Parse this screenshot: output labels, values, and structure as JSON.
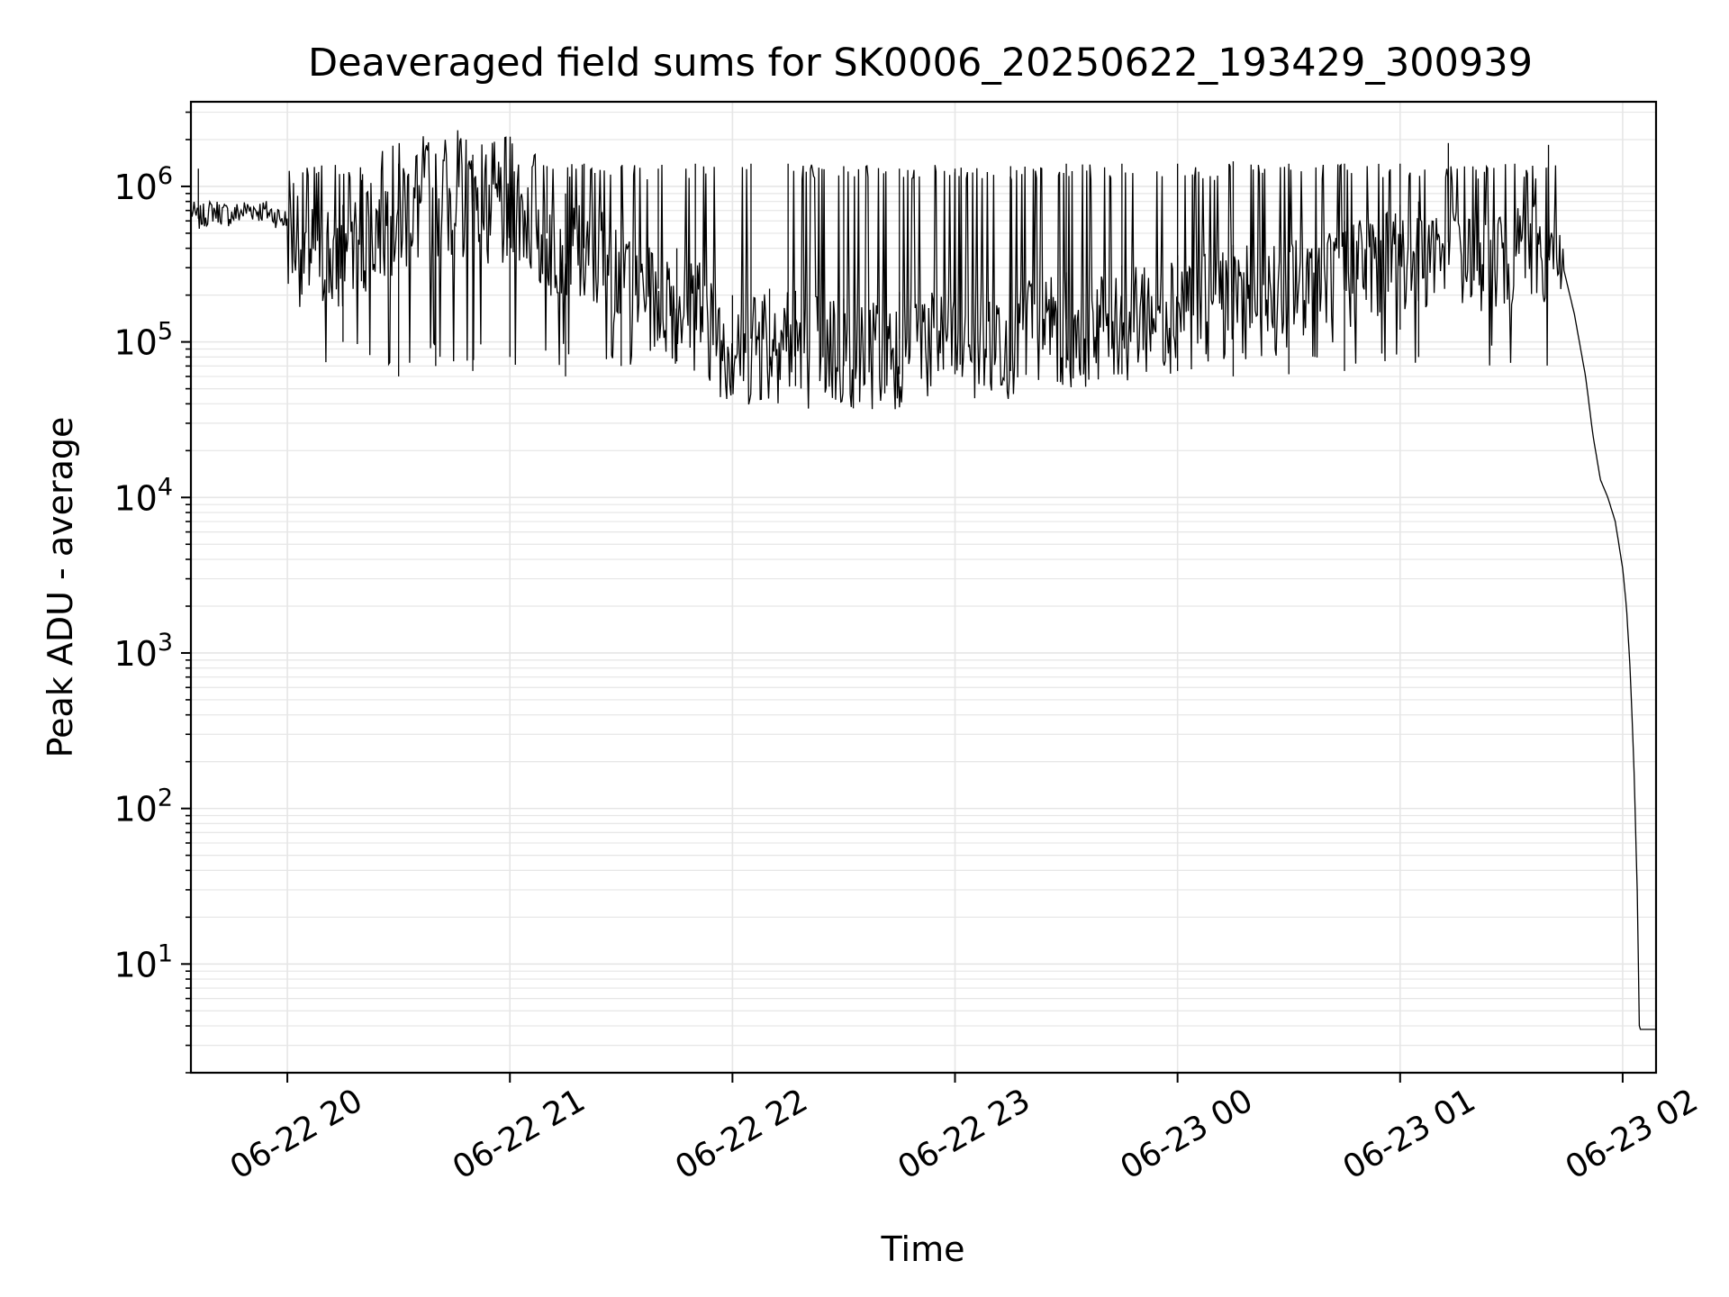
{
  "chart_data": {
    "type": "line",
    "title": "Deaveraged field sums for SK0006_20250622_193429_300939",
    "xlabel": "Time",
    "ylabel": "Peak ADU - average",
    "yscale": "log",
    "ylim": [
      2,
      3500000
    ],
    "xlim": [
      "2025-06-22 19:34",
      "2025-06-23 02:09"
    ],
    "grid": true,
    "line_color": "#000000",
    "x_ticks": [
      {
        "label": "06-22 20",
        "time": "2025-06-22 20:00"
      },
      {
        "label": "06-22 21",
        "time": "2025-06-22 21:00"
      },
      {
        "label": "06-22 22",
        "time": "2025-06-22 22:00"
      },
      {
        "label": "06-22 23",
        "time": "2025-06-22 23:00"
      },
      {
        "label": "06-23 00",
        "time": "2025-06-23 00:00"
      },
      {
        "label": "06-23 01",
        "time": "2025-06-23 01:00"
      },
      {
        "label": "06-23 02",
        "time": "2025-06-23 02:00"
      }
    ],
    "y_ticks": [
      {
        "base": "10",
        "exp": "1",
        "value": 10
      },
      {
        "base": "10",
        "exp": "2",
        "value": 100
      },
      {
        "base": "10",
        "exp": "3",
        "value": 1000
      },
      {
        "base": "10",
        "exp": "4",
        "value": 10000
      },
      {
        "base": "10",
        "exp": "5",
        "value": 100000
      },
      {
        "base": "10",
        "exp": "6",
        "value": 1000000
      }
    ],
    "series": [
      {
        "points": [
          [
            "2025-06-22 19:34",
            700000
          ],
          [
            "2025-06-22 19:36",
            620000
          ],
          [
            "2025-06-22 19:40",
            700000
          ],
          [
            "2025-06-22 19:45",
            650000
          ],
          [
            "2025-06-22 19:50",
            720000
          ],
          [
            "2025-06-22 19:55",
            680000
          ],
          [
            "2025-06-22 20:00",
            600000
          ],
          [
            "2025-06-22 20:05",
            420000
          ],
          [
            "2025-06-22 20:10",
            350000
          ],
          [
            "2025-06-22 20:15",
            380000
          ],
          [
            "2025-06-22 20:20",
            500000
          ],
          [
            "2025-06-22 20:25",
            600000
          ],
          [
            "2025-06-22 20:30",
            700000
          ],
          [
            "2025-06-22 20:35",
            750000
          ],
          [
            "2025-06-22 20:40",
            800000
          ],
          [
            "2025-06-22 20:45",
            850000
          ],
          [
            "2025-06-22 20:50",
            800000
          ],
          [
            "2025-06-22 20:55",
            700000
          ],
          [
            "2025-06-22 21:00",
            750000
          ],
          [
            "2025-06-22 21:05",
            700000
          ],
          [
            "2025-06-22 21:10",
            500000
          ],
          [
            "2025-06-22 21:15",
            450000
          ],
          [
            "2025-06-22 21:20",
            400000
          ],
          [
            "2025-06-22 21:25",
            380000
          ],
          [
            "2025-06-22 21:30",
            300000
          ],
          [
            "2025-06-22 21:35",
            250000
          ],
          [
            "2025-06-22 21:40",
            220000
          ],
          [
            "2025-06-22 21:45",
            200000
          ],
          [
            "2025-06-22 21:50",
            180000
          ],
          [
            "2025-06-22 21:55",
            140000
          ],
          [
            "2025-06-22 22:00",
            100000
          ],
          [
            "2025-06-22 22:10",
            110000
          ],
          [
            "2025-06-22 22:20",
            105000
          ],
          [
            "2025-06-22 22:30",
            95000
          ],
          [
            "2025-06-22 22:40",
            100000
          ],
          [
            "2025-06-22 22:50",
            110000
          ],
          [
            "2025-06-22 23:00",
            120000
          ],
          [
            "2025-06-22 23:10",
            110000
          ],
          [
            "2025-06-22 23:20",
            130000
          ],
          [
            "2025-06-22 23:30",
            140000
          ],
          [
            "2025-06-22 23:40",
            150000
          ],
          [
            "2025-06-22 23:50",
            160000
          ],
          [
            "2025-06-23 00:00",
            180000
          ],
          [
            "2025-06-23 00:10",
            200000
          ],
          [
            "2025-06-23 00:20",
            220000
          ],
          [
            "2025-06-23 00:30",
            250000
          ],
          [
            "2025-06-23 00:40",
            280000
          ],
          [
            "2025-06-23 00:50",
            320000
          ],
          [
            "2025-06-23 01:00",
            380000
          ],
          [
            "2025-06-23 01:10",
            420000
          ],
          [
            "2025-06-23 01:15",
            450000
          ],
          [
            "2025-06-23 01:20",
            400000
          ],
          [
            "2025-06-23 01:25",
            380000
          ],
          [
            "2025-06-23 01:30",
            400000
          ],
          [
            "2025-06-23 01:35",
            420000
          ],
          [
            "2025-06-23 01:40",
            350000
          ],
          [
            "2025-06-23 01:44",
            300000
          ],
          [
            "2025-06-23 01:47",
            150000
          ],
          [
            "2025-06-23 01:50",
            60000
          ],
          [
            "2025-06-23 01:52",
            25000
          ],
          [
            "2025-06-23 01:54",
            13000
          ],
          [
            "2025-06-23 01:56",
            10000
          ],
          [
            "2025-06-23 01:58",
            7000
          ],
          [
            "2025-06-23 02:00",
            3500
          ],
          [
            "2025-06-23 02:01",
            2000
          ],
          [
            "2025-06-23 02:02",
            800
          ],
          [
            "2025-06-23 02:03",
            200
          ],
          [
            "2025-06-23 02:04",
            25
          ],
          [
            "2025-06-23 02:04:30",
            3.8
          ],
          [
            "2025-06-23 02:09",
            3.8
          ]
        ],
        "spikes": [
          [
            "2025-06-22 19:36",
            1300000
          ],
          [
            "2025-06-22 20:20",
            1100000
          ],
          [
            "2025-06-22 20:30",
            1300000
          ],
          [
            "2025-06-22 20:40",
            1350000
          ],
          [
            "2025-06-22 20:50",
            1400000
          ],
          [
            "2025-06-22 21:00",
            1300000
          ],
          [
            "2025-06-22 21:10",
            1350000
          ],
          [
            "2025-06-22 21:20",
            1400000
          ],
          [
            "2025-06-22 21:30",
            1350000
          ],
          [
            "2025-06-22 21:40",
            1300000
          ],
          [
            "2025-06-22 21:50",
            1400000
          ],
          [
            "2025-06-22 22:05",
            1400000
          ],
          [
            "2025-06-22 22:15",
            1400000
          ],
          [
            "2025-06-22 22:30",
            1350000
          ],
          [
            "2025-06-22 22:45",
            1300000
          ],
          [
            "2025-06-22 23:00",
            1300000
          ],
          [
            "2025-06-22 23:15",
            1350000
          ],
          [
            "2025-06-22 23:30",
            1400000
          ],
          [
            "2025-06-22 23:45",
            1400000
          ],
          [
            "2025-06-23 00:00",
            1400000
          ],
          [
            "2025-06-23 00:15",
            1450000
          ],
          [
            "2025-06-23 00:30",
            1400000
          ],
          [
            "2025-06-23 00:45",
            1400000
          ],
          [
            "2025-06-23 01:00",
            1400000
          ],
          [
            "2025-06-23 01:13",
            1900000
          ],
          [
            "2025-06-23 01:40",
            1850000
          ]
        ],
        "dips": [
          [
            "2025-06-22 20:15",
            100000
          ],
          [
            "2025-06-22 20:30",
            60000
          ],
          [
            "2025-06-22 20:40",
            70000
          ],
          [
            "2025-06-22 20:50",
            65000
          ],
          [
            "2025-06-22 21:00",
            80000
          ],
          [
            "2025-06-22 21:15",
            60000
          ],
          [
            "2025-06-22 21:30",
            70000
          ],
          [
            "2025-06-22 21:45",
            75000
          ],
          [
            "2025-06-22 22:00",
            65000
          ],
          [
            "2025-06-22 22:10",
            70000
          ],
          [
            "2025-06-22 22:17",
            52000
          ],
          [
            "2025-06-22 22:30",
            70000
          ],
          [
            "2025-06-22 22:45",
            62000
          ],
          [
            "2025-06-22 23:00",
            62000
          ],
          [
            "2025-06-22 23:15",
            65000
          ],
          [
            "2025-06-22 23:30",
            68000
          ],
          [
            "2025-06-22 23:45",
            62000
          ],
          [
            "2025-06-23 00:00",
            65000
          ],
          [
            "2025-06-23 00:15",
            60000
          ],
          [
            "2025-06-23 00:30",
            62000
          ],
          [
            "2025-06-23 00:45",
            65000
          ],
          [
            "2025-06-23 01:00",
            120000
          ],
          [
            "2025-06-23 01:05",
            80000
          ]
        ]
      }
    ]
  }
}
